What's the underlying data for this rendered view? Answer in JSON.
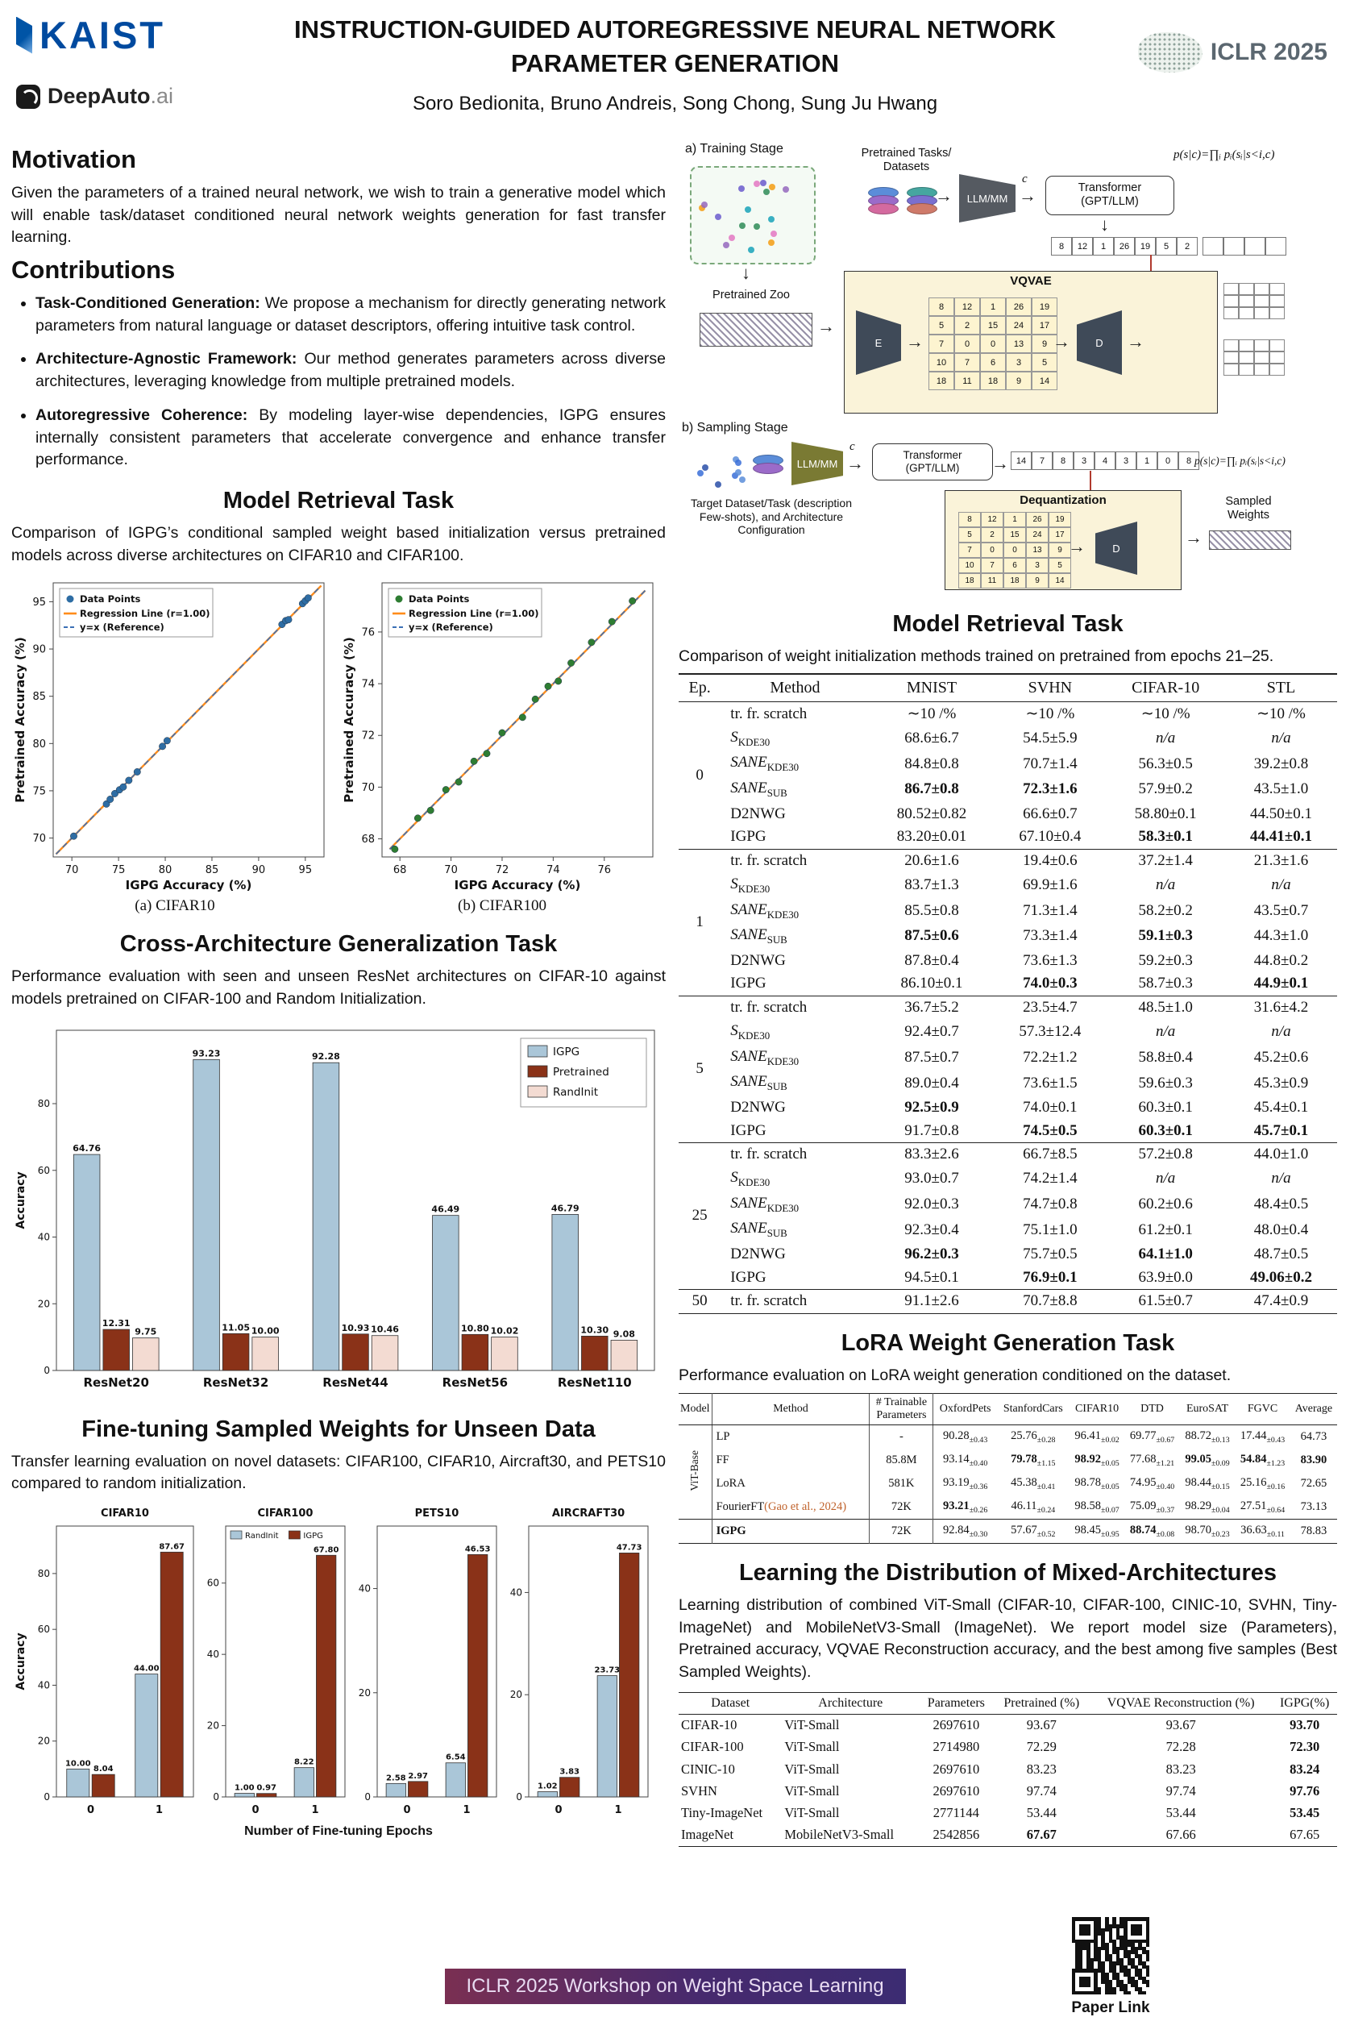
{
  "header": {
    "kaist": "KAIST",
    "deepauto": "DeepAuto",
    "deepauto_suffix": ".ai",
    "title1": "INSTRUCTION-GUIDED AUTOREGRESSIVE NEURAL NETWORK",
    "title2": "PARAMETER GENERATION",
    "authors": "Soro Bedionita, Bruno Andreis, Song Chong, Sung Ju Hwang",
    "iclr": "ICLR 2025"
  },
  "motivation": {
    "heading": "Motivation",
    "text": "Given the parameters of a trained neural network, we wish to train a generative model which will enable task/dataset conditioned neural network weights generation for fast transfer learning."
  },
  "contributions": {
    "heading": "Contributions",
    "items": [
      {
        "bold": "Task-Conditioned Generation:",
        "text": " We propose a mechanism for directly generating network parameters from natural language or dataset descriptors, offering intuitive task control."
      },
      {
        "bold": "Architecture-Agnostic Framework:",
        "text": " Our method generates parameters across diverse architectures, leveraging knowledge from multiple pretrained models."
      },
      {
        "bold": "Autoregressive Coherence:",
        "text": " By modeling layer-wise dependencies, IGPG ensures internally consistent parameters that accelerate convergence and enhance transfer performance."
      }
    ]
  },
  "retrieval_left": {
    "heading": "Model Retrieval Task",
    "caption": "Comparison of IGPG’s conditional sampled weight based initialization versus pretrained models across diverse architectures on CIFAR10 and CIFAR100.",
    "caption_a": "(a) CIFAR10",
    "caption_b": "(b) CIFAR100"
  },
  "cross_arch": {
    "heading": "Cross-Architecture Generalization Task",
    "caption": "Performance evaluation with seen and unseen ResNet architectures on CIFAR-10 against models pretrained on CIFAR-100 and Random Initialization."
  },
  "finetune": {
    "heading": "Fine-tuning Sampled Weights  for Unseen Data",
    "caption": "Transfer learning evaluation on novel datasets: CIFAR100, CIFAR10, Aircraft30, and PETS10 compared to random initialization.",
    "xlabel": "Number of Fine-tuning Epochs"
  },
  "diagram": {
    "a_label": "a) Training Stage",
    "b_label": "b) Sampling Stage",
    "pretrained_tasks": "Pretrained Tasks/\nDatasets",
    "llm_mm": "LLM/MM",
    "c": "c",
    "transformer1": "Transformer",
    "transformer2": "(GPT/LLM)",
    "formula": "p(s|c)=∏ᵢ pᵢ(sᵢ|s<i,c)",
    "token_row_a": [
      "8",
      "12",
      "1",
      "26",
      "19",
      "5",
      "2"
    ],
    "empty_row": [
      "",
      "",
      "",
      ""
    ],
    "pretrained_zoo": "Pretrained Zoo",
    "vqvae": "VQVAE",
    "E": "E",
    "D": "D",
    "vq_grid": [
      [
        "8",
        "12",
        "1",
        "26",
        "19"
      ],
      [
        "5",
        "2",
        "15",
        "24",
        "17"
      ],
      [
        "7",
        "0",
        "0",
        "13",
        "9"
      ],
      [
        "10",
        "7",
        "6",
        "3",
        "5"
      ],
      [
        "18",
        "11",
        "18",
        "9",
        "14"
      ]
    ],
    "empty_grid": [
      [
        "",
        "",
        "",
        ""
      ],
      [
        "",
        "",
        "",
        ""
      ],
      [
        "",
        "",
        "",
        ""
      ]
    ],
    "token_row_b": [
      "14",
      "7",
      "8",
      "3",
      "4",
      "3",
      "1",
      "0",
      "8"
    ],
    "target_label": "Target Dataset/Task (description Few-shots), and Architecture Configuration",
    "dequantization": "Dequantization",
    "deq_grid": [
      [
        "8",
        "12",
        "1",
        "26",
        "19"
      ],
      [
        "5",
        "2",
        "15",
        "24",
        "17"
      ],
      [
        "7",
        "0",
        "0",
        "13",
        "9"
      ],
      [
        "10",
        "7",
        "6",
        "3",
        "5"
      ],
      [
        "18",
        "11",
        "18",
        "9",
        "14"
      ]
    ],
    "sampled_weights": "Sampled\nWeights"
  },
  "epoch_table": {
    "heading": "Model Retrieval Task",
    "caption": "Comparison of weight initialization methods trained on pretrained from epochs 21–25.",
    "columns": [
      "Ep.",
      "Method",
      "MNIST",
      "SVHN",
      "CIFAR-10",
      "STL"
    ],
    "groups": [
      {
        "ep": "0",
        "rows": [
          {
            "method": "tr. fr. scratch",
            "cells": [
              "∼10 /%",
              "∼10 /%",
              "∼10 /%",
              "∼10 /%"
            ]
          },
          {
            "method": "*S*{KDE30}",
            "cells": [
              "68.6±6.7",
              "54.5±5.9",
              "*n/a*",
              "*n/a*"
            ]
          },
          {
            "method": "*SANE*{KDE30}",
            "cells": [
              "84.8±0.8",
              "70.7±1.4",
              "56.3±0.5",
              "39.2±0.8"
            ]
          },
          {
            "method": "*SANE*{SUB}",
            "cells": [
              "**86.7±0.8**",
              "**72.3±1.6**",
              "57.9±0.2",
              "43.5±1.0"
            ]
          },
          {
            "method": "D2NWG",
            "cells": [
              "80.52±0.82",
              "66.6±0.7",
              "58.80±0.1",
              "44.50±0.1"
            ]
          },
          {
            "method": "IGPG",
            "cells": [
              "83.20±0.01",
              "67.10±0.4",
              "**58.3±0.1**",
              "**44.41±0.1**"
            ]
          }
        ]
      },
      {
        "ep": "1",
        "rows": [
          {
            "method": "tr. fr. scratch",
            "cells": [
              "20.6±1.6",
              "19.4±0.6",
              "37.2±1.4",
              "21.3±1.6"
            ]
          },
          {
            "method": "*S*{KDE30}",
            "cells": [
              "83.7±1.3",
              "69.9±1.6",
              "*n/a*",
              "*n/a*"
            ]
          },
          {
            "method": "*SANE*{KDE30}",
            "cells": [
              "85.5±0.8",
              "71.3±1.4",
              "58.2±0.2",
              "43.5±0.7"
            ]
          },
          {
            "method": "*SANE*{SUB}",
            "cells": [
              "**87.5±0.6**",
              "73.3±1.4",
              "**59.1±0.3**",
              "44.3±1.0"
            ]
          },
          {
            "method": "D2NWG",
            "cells": [
              "87.8±0.4",
              "73.6±1.3",
              "59.2±0.3",
              "44.8±0.2"
            ]
          },
          {
            "method": "IGPG",
            "cells": [
              "86.10±0.1",
              "**74.0±0.3**",
              "58.7±0.3",
              "**44.9±0.1**"
            ]
          }
        ]
      },
      {
        "ep": "5",
        "rows": [
          {
            "method": "tr. fr. scratch",
            "cells": [
              "36.7±5.2",
              "23.5±4.7",
              "48.5±1.0",
              "31.6±4.2"
            ]
          },
          {
            "method": "*S*{KDE30}",
            "cells": [
              "92.4±0.7",
              "57.3±12.4",
              "*n/a*",
              "*n/a*"
            ]
          },
          {
            "method": "*SANE*{KDE30}",
            "cells": [
              "87.5±0.7",
              "72.2±1.2",
              "58.8±0.4",
              "45.2±0.6"
            ]
          },
          {
            "method": "*SANE*{SUB}",
            "cells": [
              "89.0±0.4",
              "73.6±1.5",
              "59.6±0.3",
              "45.3±0.9"
            ]
          },
          {
            "method": "D2NWG",
            "cells": [
              "**92.5±0.9**",
              "74.0±0.1",
              "60.3±0.1",
              "45.4±0.1"
            ]
          },
          {
            "method": "IGPG",
            "cells": [
              "91.7±0.8",
              "**74.5±0.5**",
              "**60.3±0.1**",
              "**45.7±0.1**"
            ]
          }
        ]
      },
      {
        "ep": "25",
        "rows": [
          {
            "method": "tr. fr. scratch",
            "cells": [
              "83.3±2.6",
              "66.7±8.5",
              "57.2±0.8",
              "44.0±1.0"
            ]
          },
          {
            "method": "*S*{KDE30}",
            "cells": [
              "93.0±0.7",
              "74.2±1.4",
              "*n/a*",
              "*n/a*"
            ]
          },
          {
            "method": "*SANE*{KDE30}",
            "cells": [
              "92.0±0.3",
              "74.7±0.8",
              "60.2±0.6",
              "48.4±0.5"
            ]
          },
          {
            "method": "*SANE*{SUB}",
            "cells": [
              "92.3±0.4",
              "75.1±1.0",
              "61.2±0.1",
              "48.0±0.4"
            ]
          },
          {
            "method": "D2NWG",
            "cells": [
              "**96.2±0.3**",
              "75.7±0.5",
              "**64.1±1.0**",
              "48.7±0.5"
            ]
          },
          {
            "method": "IGPG",
            "cells": [
              "94.5±0.1",
              "**76.9±0.1**",
              "63.9±0.0",
              "**49.06±0.2**"
            ]
          }
        ]
      },
      {
        "ep": "50",
        "rows": [
          {
            "method": "tr. fr. scratch",
            "cells": [
              "91.1±2.6",
              "70.7±8.8",
              "61.5±0.7",
              "47.4±0.9"
            ]
          }
        ]
      }
    ]
  },
  "lora_table": {
    "heading": "LoRA  Weight Generation Task",
    "caption": "Performance evaluation on LoRA weight generation conditioned on the dataset.",
    "col1": "Model",
    "col2": "Method",
    "col3": "# Trainable\nParameters",
    "datasets": [
      "OxfordPets",
      "StanfordCars",
      "CIFAR10",
      "DTD",
      "EuroSAT",
      "FGVC",
      "Average"
    ],
    "group_label": "ViT-Base",
    "rows": [
      {
        "method": "LP",
        "cite": "",
        "params": "-",
        "cells": [
          "90.28{±0.43}",
          "25.76{±0.28}",
          "96.41{±0.02}",
          "69.77{±0.67}",
          "88.72{±0.13}",
          "17.44{±0.43}",
          "64.73"
        ]
      },
      {
        "method": "FF",
        "cite": "",
        "params": "85.8M",
        "cells": [
          "93.14{±0.40}",
          "**79.78**{±1.15}",
          "**98.92**{±0.05}",
          "77.68{±1.21}",
          "**99.05**{±0.09}",
          "**54.84**{±1.23}",
          "**83.90**"
        ]
      },
      {
        "method": "LoRA",
        "cite": "",
        "params": "581K",
        "cells": [
          "93.19{±0.36}",
          "45.38{±0.41}",
          "98.78{±0.05}",
          "74.95{±0.40}",
          "98.44{±0.15}",
          "25.16{±0.16}",
          "72.65"
        ]
      },
      {
        "method": "FourierFT",
        "cite": "(Gao et al., 2024)",
        "params": "72K",
        "cells": [
          "**93.21**{±0.26}",
          "46.11{±0.24}",
          "98.58{±0.07}",
          "75.09{±0.37}",
          "98.29{±0.04}",
          "27.51{±0.64}",
          "73.13"
        ]
      }
    ],
    "igpg_row": {
      "method": "**IGPG**",
      "cite": "",
      "params": "72K",
      "cells": [
        "92.84{±0.30}",
        "57.67{±0.52}",
        "98.45{±0.95}",
        "**88.74**{±0.08}",
        "98.70{±0.23}",
        "36.63{±0.11}",
        "78.83"
      ]
    }
  },
  "mixed_table": {
    "heading": "Learning the Distribution of Mixed-Architectures",
    "text": "Learning distribution of combined ViT-Small (CIFAR-10, CIFAR-100, CINIC-10, SVHN, Tiny-ImageNet) and MobileNetV3-Small (ImageNet). We report model size (Parameters), Pretrained accuracy, VQVAE Reconstruction accuracy, and the best among five samples (Best Sampled Weights).",
    "columns": [
      "Dataset",
      "Architecture",
      "Parameters",
      "Pretrained (%)",
      "VQVAE Reconstruction (%)",
      "IGPG(%)"
    ],
    "rows": [
      [
        "CIFAR-10",
        "ViT-Small",
        "2697610",
        "93.67",
        "93.67",
        "**93.70**"
      ],
      [
        "CIFAR-100",
        "ViT-Small",
        "2714980",
        "72.29",
        "72.28",
        "**72.30**"
      ],
      [
        "CINIC-10",
        "ViT-Small",
        "2697610",
        "83.23",
        "83.23",
        "**83.24**"
      ],
      [
        "SVHN",
        "ViT-Small",
        "2697610",
        "97.74",
        "97.74",
        "**97.76**"
      ],
      [
        "Tiny-ImageNet",
        "ViT-Small",
        "2771144",
        "53.44",
        "53.44",
        "**53.45**"
      ],
      [
        "ImageNet",
        "MobileNetV3-Small",
        "2542856",
        "**67.67**",
        "67.66",
        "67.65"
      ]
    ]
  },
  "qr_label": "Paper Link",
  "footer": "ICLR 2025 Workshop on Weight Space Learning",
  "chart_data": [
    {
      "name": "cifar10_scatter",
      "type": "scatter",
      "xlabel": "IGPG Accuracy (%)",
      "ylabel": "Pretrained Accuracy (%)",
      "xlim": [
        68,
        97
      ],
      "ylim": [
        68,
        97
      ],
      "xticks": [
        70,
        75,
        80,
        85,
        90,
        95
      ],
      "yticks": [
        70,
        75,
        80,
        85,
        90,
        95
      ],
      "point_color": "#2e6da4",
      "legend": [
        "Data Points",
        "Regression Line (r=1.00)",
        "y=x (Reference)"
      ],
      "points": [
        [
          70.2,
          70.2
        ],
        [
          73.7,
          73.6
        ],
        [
          74.1,
          74.1
        ],
        [
          74.6,
          74.7
        ],
        [
          75.1,
          75.1
        ],
        [
          75.5,
          75.4
        ],
        [
          76.1,
          76.1
        ],
        [
          77.0,
          77.0
        ],
        [
          79.7,
          79.7
        ],
        [
          80.2,
          80.3
        ],
        [
          92.5,
          92.6
        ],
        [
          92.9,
          93.0
        ],
        [
          93.2,
          93.1
        ],
        [
          94.7,
          94.8
        ],
        [
          95.0,
          95.1
        ],
        [
          95.3,
          95.4
        ]
      ]
    },
    {
      "name": "cifar100_scatter",
      "type": "scatter",
      "xlabel": "IGPG Accuracy (%)",
      "ylabel": "Pretrained Accuracy (%)",
      "xlim": [
        67.3,
        77.9
      ],
      "ylim": [
        67.3,
        77.9
      ],
      "xticks": [
        68,
        70,
        72,
        74,
        76
      ],
      "yticks": [
        68,
        70,
        72,
        74,
        76
      ],
      "point_color": "#2e7d32",
      "legend": [
        "Data Points",
        "Regression Line (r=1.00)",
        "y=x (Reference)"
      ],
      "points": [
        [
          67.8,
          67.6
        ],
        [
          68.7,
          68.8
        ],
        [
          69.2,
          69.1
        ],
        [
          69.8,
          69.9
        ],
        [
          70.3,
          70.2
        ],
        [
          70.9,
          71.0
        ],
        [
          71.4,
          71.3
        ],
        [
          72.0,
          72.1
        ],
        [
          72.8,
          72.7
        ],
        [
          73.3,
          73.4
        ],
        [
          73.8,
          73.9
        ],
        [
          74.2,
          74.1
        ],
        [
          74.7,
          74.8
        ],
        [
          75.5,
          75.6
        ],
        [
          76.3,
          76.4
        ],
        [
          77.1,
          77.2
        ]
      ]
    },
    {
      "name": "cross_arch",
      "type": "bar",
      "categories": [
        "ResNet20",
        "ResNet32",
        "ResNet44",
        "ResNet56",
        "ResNet110"
      ],
      "ylabel": "Accuracy",
      "ylim": [
        0,
        102
      ],
      "yticks": [
        0,
        20,
        40,
        60,
        80
      ],
      "legend": "tr",
      "series": [
        {
          "name": "IGPG",
          "color": "#aac6d8",
          "values": [
            64.76,
            93.23,
            92.28,
            46.49,
            46.79
          ]
        },
        {
          "name": "Pretrained",
          "color": "#8a3218",
          "values": [
            12.31,
            11.05,
            10.93,
            10.8,
            10.3
          ]
        },
        {
          "name": "RandInit",
          "color": "#f3dbd2",
          "values": [
            9.75,
            10.0,
            10.46,
            10.02,
            9.08
          ]
        }
      ]
    },
    {
      "name": "ft_cifar10",
      "type": "bar",
      "title": "CIFAR10",
      "categories": [
        "0",
        "1"
      ],
      "ylabel": "Accuracy",
      "ylim": [
        0,
        97
      ],
      "yticks": [
        0,
        20,
        40,
        60,
        80
      ],
      "series": [
        {
          "name": "RandInit",
          "color": "#aac6d8",
          "values": [
            10.0,
            44.0
          ]
        },
        {
          "name": "IGPG",
          "color": "#8a3218",
          "values": [
            8.04,
            87.67
          ]
        }
      ]
    },
    {
      "name": "ft_cifar100",
      "type": "bar",
      "title": "CIFAR100",
      "categories": [
        "0",
        "1"
      ],
      "ylim": [
        0,
        76
      ],
      "yticks": [
        0,
        20,
        40,
        60
      ],
      "legend": "top",
      "series": [
        {
          "name": "RandInit",
          "color": "#aac6d8",
          "values": [
            1.0,
            8.22
          ]
        },
        {
          "name": "IGPG",
          "color": "#8a3218",
          "values": [
            0.97,
            67.8
          ]
        }
      ]
    },
    {
      "name": "ft_pets10",
      "type": "bar",
      "title": "PETS10",
      "categories": [
        "0",
        "1"
      ],
      "ylim": [
        0,
        52
      ],
      "yticks": [
        0,
        20,
        40
      ],
      "series": [
        {
          "name": "RandInit",
          "color": "#aac6d8",
          "values": [
            2.58,
            6.54
          ]
        },
        {
          "name": "IGPG",
          "color": "#8a3218",
          "values": [
            2.97,
            46.53
          ]
        }
      ]
    },
    {
      "name": "ft_aircraft30",
      "type": "bar",
      "title": "AIRCRAFT30",
      "categories": [
        "0",
        "1"
      ],
      "ylim": [
        0,
        53
      ],
      "yticks": [
        0,
        20,
        40
      ],
      "series": [
        {
          "name": "RandInit",
          "color": "#aac6d8",
          "values": [
            1.02,
            23.73
          ]
        },
        {
          "name": "IGPG",
          "color": "#8a3218",
          "values": [
            3.83,
            47.73
          ]
        }
      ]
    }
  ]
}
